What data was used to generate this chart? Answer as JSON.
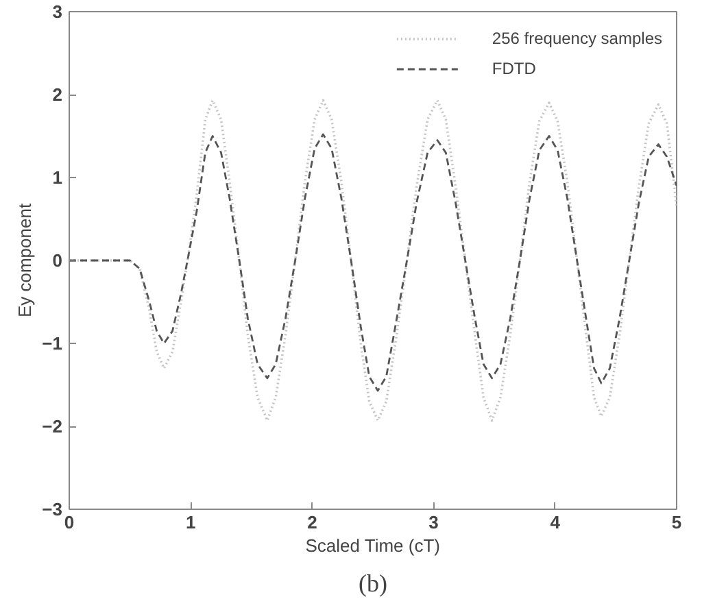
{
  "chart_data": {
    "type": "line",
    "xlabel": "Scaled Time (cT)",
    "ylabel": "Ey component",
    "annotations": [
      "(b)"
    ],
    "xlim": [
      0,
      5
    ],
    "ylim": [
      -3,
      3
    ],
    "xticks": [
      0,
      1,
      2,
      3,
      4,
      5
    ],
    "yticks": [
      -3,
      -2,
      -1,
      0,
      1,
      2,
      3
    ],
    "grid": false,
    "legend": "top right",
    "marker": "none",
    "x": [
      0,
      0.5,
      0.58,
      0.66,
      0.72,
      0.78,
      0.85,
      0.92,
      0.98,
      1.05,
      1.12,
      1.18,
      1.25,
      1.32,
      1.4,
      1.47,
      1.55,
      1.63,
      1.7,
      1.78,
      1.86,
      1.94,
      2.02,
      2.09,
      2.16,
      2.24,
      2.32,
      2.4,
      2.47,
      2.54,
      2.61,
      2.69,
      2.78,
      2.86,
      2.95,
      3.03,
      3.1,
      3.18,
      3.26,
      3.34,
      3.41,
      3.48,
      3.55,
      3.63,
      3.71,
      3.79,
      3.87,
      3.95,
      4.02,
      4.1,
      4.18,
      4.26,
      4.32,
      4.38,
      4.45,
      4.53,
      4.61,
      4.69,
      4.77,
      4.85,
      4.92,
      5.0
    ],
    "series": [
      {
        "name": "256 frequency samples",
        "color": "#c4c4c4",
        "line_style": "dotted",
        "values": [
          0,
          0,
          -0.1,
          -0.6,
          -1.1,
          -1.3,
          -1.1,
          -0.5,
          0.05,
          0.8,
          1.7,
          1.93,
          1.7,
          0.95,
          0,
          -0.9,
          -1.65,
          -1.93,
          -1.65,
          -0.9,
          0,
          0.95,
          1.7,
          1.93,
          1.7,
          0.95,
          0,
          -1.0,
          -1.7,
          -1.93,
          -1.7,
          -0.95,
          0,
          0.9,
          1.7,
          1.93,
          1.7,
          0.9,
          0,
          -0.9,
          -1.65,
          -1.93,
          -1.65,
          -0.9,
          0,
          0.95,
          1.68,
          1.9,
          1.68,
          0.95,
          0,
          -0.95,
          -1.65,
          -1.88,
          -1.65,
          -0.9,
          0,
          0.9,
          1.65,
          1.88,
          1.65,
          0.65
        ]
      },
      {
        "name": "FDTD",
        "color": "#555555",
        "line_style": "dashed",
        "values": [
          0,
          0,
          -0.1,
          -0.5,
          -0.85,
          -1.0,
          -0.85,
          -0.4,
          0.05,
          0.6,
          1.3,
          1.5,
          1.3,
          0.75,
          0,
          -0.7,
          -1.25,
          -1.42,
          -1.25,
          -0.7,
          0,
          0.75,
          1.35,
          1.52,
          1.35,
          0.75,
          0,
          -0.8,
          -1.4,
          -1.57,
          -1.4,
          -0.75,
          0,
          0.7,
          1.3,
          1.45,
          1.3,
          0.7,
          0,
          -0.7,
          -1.25,
          -1.42,
          -1.25,
          -0.7,
          0,
          0.75,
          1.33,
          1.5,
          1.33,
          0.75,
          0,
          -0.75,
          -1.3,
          -1.48,
          -1.3,
          -0.7,
          0,
          0.7,
          1.25,
          1.4,
          1.25,
          0.9
        ]
      }
    ]
  }
}
